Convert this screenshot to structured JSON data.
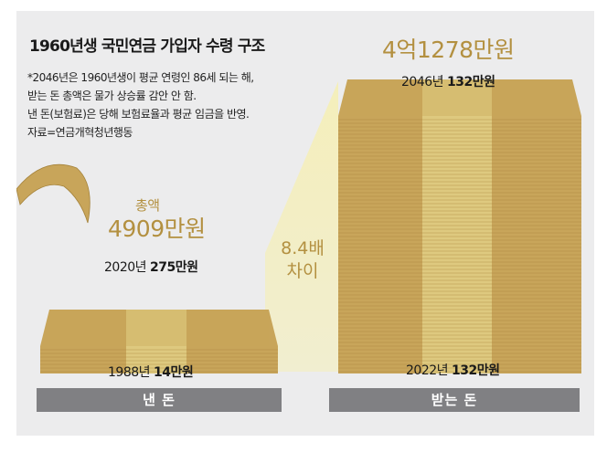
{
  "header": {
    "title": "1960년생 국민연금 가입자 수령 구조",
    "notes": [
      "*2046년은 1960년생이 평균 연령인 86세 되는 해,",
      "받는 돈 총액은 물가 상승률 감안 안 함.",
      "낸 돈(보험료)은 당해 보험료율과 평균 임금을 반영.",
      "자료=연금개혁청년행동"
    ]
  },
  "paid": {
    "total_label": "총액",
    "total_value": "4909만원",
    "top_year": "2020년",
    "top_amount": "275만원",
    "bottom_year": "1988년",
    "bottom_amount": "14만원",
    "category": "낸 돈"
  },
  "received": {
    "total_value": "4억1278만원",
    "top_year": "2046년",
    "top_amount": "132만원",
    "bottom_year": "2022년",
    "bottom_amount": "132만원",
    "category": "받는 돈"
  },
  "ratio": {
    "line1": "8.4배",
    "line2": "차이"
  },
  "chart_data": {
    "type": "bar",
    "title": "1960년생 국민연금 가입자 수령 구조",
    "categories": [
      "낸 돈",
      "받는 돈"
    ],
    "values": [
      4909,
      41278
    ],
    "unit": "만원",
    "annotations": [
      "8.4배 차이"
    ]
  },
  "colors": {
    "money": "#c8a55a",
    "money_band": "#e2cf86",
    "money_line": "#a5833b",
    "label_bar": "#808083",
    "panel": "#ececed"
  }
}
